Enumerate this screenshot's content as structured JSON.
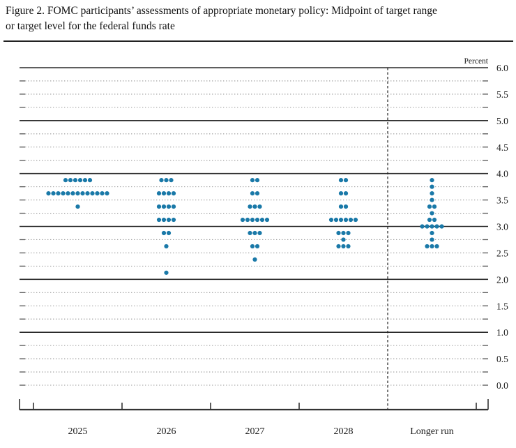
{
  "header": {
    "title_line1": "Figure 2. FOMC participants’ assessments of appropriate monetary policy: Midpoint of target range",
    "title_line2": "or target level for the federal funds rate"
  },
  "chart_data": {
    "type": "scatter",
    "subtype": "fomc-dot-plot",
    "title": "Figure 2. FOMC participants’ assessments of appropriate monetary policy: Midpoint of target range or target level for the federal funds rate",
    "unit_label": "Percent",
    "ylim": [
      0.0,
      6.0
    ],
    "grid_step": 0.25,
    "tick_label_step": 0.5,
    "y_tick_labels": [
      "6.0",
      "5.5",
      "5.0",
      "4.5",
      "4.0",
      "3.5",
      "3.0",
      "2.5",
      "2.0",
      "1.5",
      "1.0",
      "0.5",
      "0.0"
    ],
    "grid_on": true,
    "legend": "none",
    "dot_color": "#1a79a8",
    "categories": [
      "2025",
      "2026",
      "2027",
      "2028",
      "Longer run"
    ],
    "separator_before_category": "Longer run",
    "series": [
      {
        "category": "2025",
        "dots": [
          {
            "rate": 3.875,
            "count": 6
          },
          {
            "rate": 3.625,
            "count": 13
          },
          {
            "rate": 3.375,
            "count": 1
          }
        ]
      },
      {
        "category": "2026",
        "dots": [
          {
            "rate": 3.875,
            "count": 3
          },
          {
            "rate": 3.625,
            "count": 4
          },
          {
            "rate": 3.375,
            "count": 4
          },
          {
            "rate": 3.125,
            "count": 4
          },
          {
            "rate": 2.875,
            "count": 2
          },
          {
            "rate": 2.625,
            "count": 1
          },
          {
            "rate": 2.125,
            "count": 1
          }
        ]
      },
      {
        "category": "2027",
        "dots": [
          {
            "rate": 3.875,
            "count": 2
          },
          {
            "rate": 3.625,
            "count": 2
          },
          {
            "rate": 3.375,
            "count": 3
          },
          {
            "rate": 3.125,
            "count": 6
          },
          {
            "rate": 2.875,
            "count": 3
          },
          {
            "rate": 2.625,
            "count": 2
          },
          {
            "rate": 2.375,
            "count": 1
          }
        ]
      },
      {
        "category": "2028",
        "dots": [
          {
            "rate": 3.875,
            "count": 2
          },
          {
            "rate": 3.625,
            "count": 2
          },
          {
            "rate": 3.375,
            "count": 2
          },
          {
            "rate": 3.125,
            "count": 6
          },
          {
            "rate": 2.875,
            "count": 3
          },
          {
            "rate": 2.75,
            "count": 1
          },
          {
            "rate": 2.625,
            "count": 3
          }
        ]
      },
      {
        "category": "Longer run",
        "dots": [
          {
            "rate": 3.875,
            "count": 1
          },
          {
            "rate": 3.75,
            "count": 1
          },
          {
            "rate": 3.625,
            "count": 1
          },
          {
            "rate": 3.5,
            "count": 1
          },
          {
            "rate": 3.375,
            "count": 2
          },
          {
            "rate": 3.25,
            "count": 1
          },
          {
            "rate": 3.125,
            "count": 2
          },
          {
            "rate": 3.0,
            "count": 5
          },
          {
            "rate": 2.875,
            "count": 1
          },
          {
            "rate": 2.75,
            "count": 1
          },
          {
            "rate": 2.625,
            "count": 3
          }
        ]
      }
    ]
  },
  "colors": {
    "dot": "#1a79a8",
    "solid_grid": "#2a2a2a",
    "dotted_grid": "#999999",
    "axis": "#333333",
    "text": "#1a1a1a"
  }
}
